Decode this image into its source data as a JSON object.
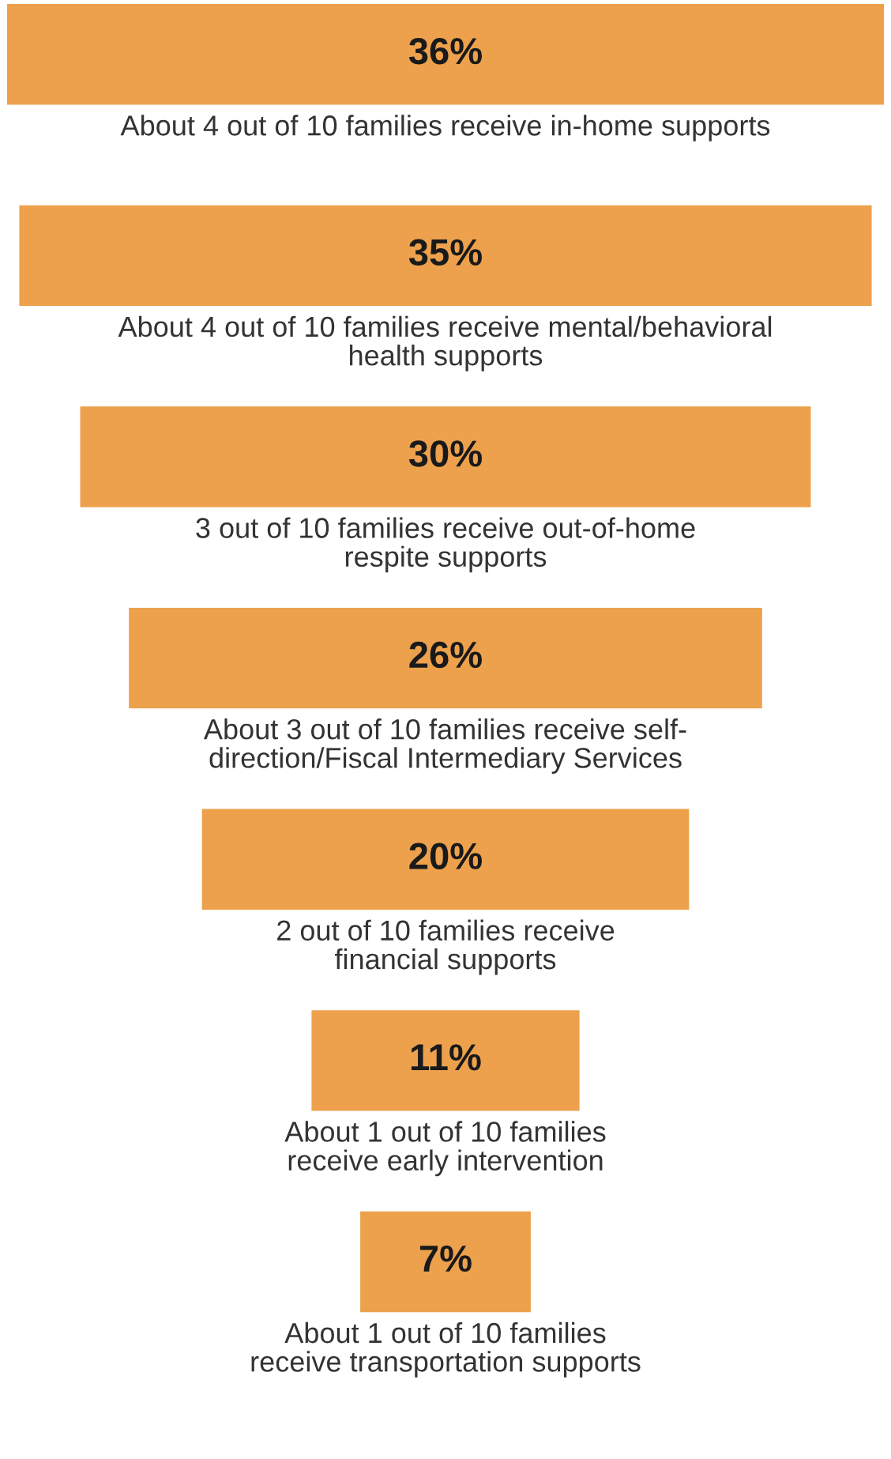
{
  "chart_data": {
    "type": "other",
    "color": "#eda14c",
    "values": [
      36,
      35,
      30,
      26,
      20,
      11,
      7
    ],
    "value_labels": [
      "36%",
      "35%",
      "30%",
      "26%",
      "20%",
      "11%",
      "7%"
    ],
    "annotations": [
      "About 4 out of 10 families receive in-home supports",
      "About 4 out of 10 families receive mental/behavioral\nhealth supports",
      "3 out of 10 families receive out-of-home\nrespite supports",
      "About 3 out of 10 families receive self-\ndirection/Fiscal Intermediary Services",
      "2 out of 10 families receive\nfinancial supports",
      "About 1 out of 10 families\nreceive early intervention",
      "About 1 out of 10 families\nreceive transportation supports"
    ]
  }
}
